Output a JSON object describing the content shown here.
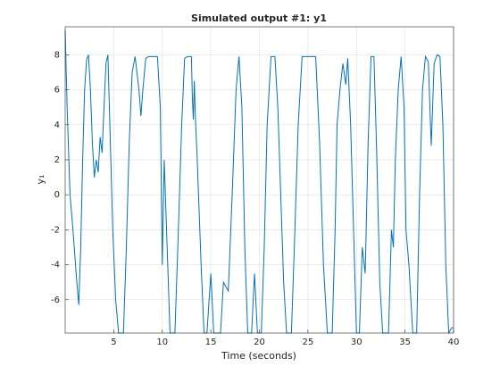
{
  "chart_data": {
    "type": "line",
    "title": "Simulated output #1: y1",
    "xlabel": "Time (seconds)",
    "ylabel": "y₁",
    "x": [
      0,
      0.2,
      0.5,
      0.8,
      1.2,
      1.4,
      1.6,
      1.8,
      2.0,
      2.2,
      2.4,
      2.6,
      2.8,
      3.0,
      3.2,
      3.4,
      3.6,
      3.8,
      4.0,
      4.2,
      4.4,
      4.6,
      4.9,
      5.2,
      5.5,
      6.0,
      6.3,
      6.6,
      6.9,
      7.2,
      7.6,
      7.8,
      8.0,
      8.3,
      8.6,
      9.5,
      9.8,
      10.0,
      10.2,
      10.5,
      10.8,
      11.3,
      11.6,
      12.0,
      12.3,
      12.6,
      13.0,
      13.1,
      13.2,
      13.3,
      13.4,
      13.6,
      14.0,
      14.3,
      14.6,
      15.0,
      15.3,
      16.0,
      16.3,
      16.8,
      17.2,
      17.6,
      17.9,
      18.2,
      18.5,
      18.8,
      19.2,
      19.5,
      19.8,
      20.2,
      20.5,
      20.8,
      21.2,
      21.6,
      21.9,
      22.2,
      22.5,
      22.8,
      23.3,
      23.6,
      24.0,
      24.4,
      25.8,
      26.2,
      26.6,
      27.0,
      27.5,
      27.8,
      28.0,
      28.3,
      28.6,
      28.9,
      29.1,
      29.4,
      29.7,
      30.0,
      30.3,
      30.6,
      30.9,
      31.2,
      31.5,
      31.8,
      32.1,
      32.4,
      32.7,
      33.3,
      33.6,
      33.8,
      34.0,
      34.3,
      34.6,
      34.9,
      35.1,
      35.4,
      35.8,
      36.2,
      36.5,
      36.8,
      37.1,
      37.4,
      37.7,
      38.0,
      38.3,
      38.6,
      38.9,
      39.2,
      39.5,
      39.8,
      40
    ],
    "series": [
      {
        "name": "y1",
        "color": "#0072bd",
        "values": [
          9.4,
          5,
          0,
          -2,
          -5,
          -6.3,
          -3,
          2,
          6,
          7.7,
          8,
          6,
          3,
          1,
          2,
          1.3,
          3.3,
          2.4,
          5,
          7.5,
          8,
          4,
          -2,
          -6,
          -7.9,
          -7.9,
          -3,
          3,
          7,
          7.9,
          6,
          4.5,
          6,
          7.8,
          7.9,
          7.9,
          5,
          -4,
          2,
          -3,
          -7.9,
          -7.9,
          -3,
          4,
          7.8,
          7.9,
          7.9,
          5.5,
          4.3,
          6.5,
          4.6,
          2,
          -4,
          -7.9,
          -7.9,
          -4.5,
          -7.9,
          -7.9,
          -5,
          -5.5,
          0,
          6,
          7.9,
          5,
          -3,
          -7.9,
          -7.9,
          -4.5,
          -7.9,
          -7.9,
          -3,
          4,
          7.9,
          7.9,
          5,
          0,
          -5,
          -7.9,
          -7.9,
          -3,
          4,
          7.9,
          7.9,
          3,
          -4,
          -7.9,
          -7.9,
          -2,
          4,
          6,
          7.5,
          6.3,
          7.8,
          4,
          -2,
          -7.9,
          -7.9,
          -3,
          -4.5,
          3,
          7.9,
          7.9,
          2,
          -5,
          -7.9,
          -7.9,
          -2,
          -3,
          2,
          6,
          7.9,
          5,
          -2,
          -4,
          -7.9,
          -7.9,
          0,
          6,
          7.9,
          7.6,
          2.8,
          7.5,
          8,
          7.9,
          4,
          -4,
          -7.9,
          -7.6,
          -7.6
        ]
      }
    ],
    "xlim": [
      0,
      40
    ],
    "xticks": [
      5,
      10,
      15,
      20,
      25,
      30,
      35,
      40
    ],
    "ylim": [
      -7.9,
      9.6
    ],
    "yticks": [
      -6,
      -4,
      -2,
      0,
      2,
      4,
      6,
      8
    ],
    "grid": true
  }
}
